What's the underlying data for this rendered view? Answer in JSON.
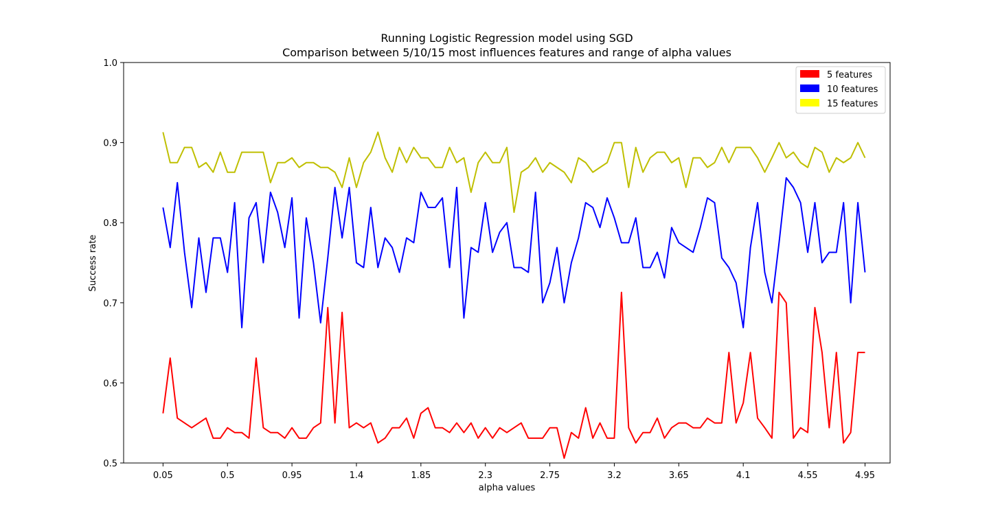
{
  "chart_data": {
    "type": "line",
    "title": "Running Logistic Regression model using SGD",
    "subtitle": "Comparison between 5/10/15 most influences features and range of alpha values",
    "xlabel": "alpha values",
    "ylabel": "Success rate",
    "xlim": [
      -0.225,
      5.125
    ],
    "ylim": [
      0.5,
      1.0
    ],
    "xticks": [
      "0.05",
      "0.5",
      "0.95",
      "1.4",
      "1.85",
      "2.3",
      "2.75",
      "3.2",
      "3.65",
      "4.1",
      "4.55",
      "4.95"
    ],
    "xtick_values": [
      0.05,
      0.5,
      0.95,
      1.4,
      1.85,
      2.3,
      2.75,
      3.2,
      3.65,
      4.1,
      4.55,
      4.95
    ],
    "yticks": [
      "0.5",
      "0.6",
      "0.7",
      "0.8",
      "0.9",
      "1.0"
    ],
    "ytick_values": [
      0.5,
      0.6,
      0.7,
      0.8,
      0.9,
      1.0
    ],
    "grid": false,
    "legend_position": "top-right",
    "x_start": 0.05,
    "x_step": 0.05,
    "series": [
      {
        "name": "5 features",
        "color": "#ff0000",
        "values": [
          0.562,
          0.631,
          0.556,
          0.55,
          0.544,
          0.55,
          0.556,
          0.531,
          0.531,
          0.544,
          0.538,
          0.538,
          0.531,
          0.631,
          0.544,
          0.538,
          0.538,
          0.531,
          0.544,
          0.531,
          0.531,
          0.544,
          0.55,
          0.694,
          0.55,
          0.688,
          0.544,
          0.55,
          0.544,
          0.55,
          0.525,
          0.531,
          0.544,
          0.544,
          0.556,
          0.531,
          0.562,
          0.569,
          0.544,
          0.544,
          0.538,
          0.55,
          0.538,
          0.55,
          0.531,
          0.544,
          0.531,
          0.544,
          0.538,
          0.544,
          0.55,
          0.531,
          0.531,
          0.531,
          0.544,
          0.544,
          0.506,
          0.538,
          0.531,
          0.569,
          0.531,
          0.55,
          0.531,
          0.531,
          0.713,
          0.544,
          0.525,
          0.538,
          0.538,
          0.556,
          0.531,
          0.544,
          0.55,
          0.55,
          0.544,
          0.544,
          0.556,
          0.55,
          0.55,
          0.638,
          0.55,
          0.575,
          0.638,
          0.556,
          0.544,
          0.531,
          0.713,
          0.7,
          0.531,
          0.544,
          0.538,
          0.694,
          0.638,
          0.544,
          0.638,
          0.525,
          0.538,
          0.638,
          0.638
        ]
      },
      {
        "name": "10 features",
        "color": "#0000ff",
        "values": [
          0.819,
          0.769,
          0.85,
          0.763,
          0.694,
          0.781,
          0.713,
          0.781,
          0.781,
          0.738,
          0.825,
          0.669,
          0.806,
          0.825,
          0.75,
          0.838,
          0.813,
          0.769,
          0.831,
          0.681,
          0.806,
          0.75,
          0.675,
          0.756,
          0.844,
          0.781,
          0.844,
          0.75,
          0.744,
          0.819,
          0.744,
          0.781,
          0.769,
          0.738,
          0.781,
          0.775,
          0.838,
          0.819,
          0.819,
          0.831,
          0.744,
          0.844,
          0.681,
          0.769,
          0.763,
          0.825,
          0.763,
          0.788,
          0.8,
          0.744,
          0.744,
          0.738,
          0.838,
          0.7,
          0.725,
          0.769,
          0.7,
          0.75,
          0.781,
          0.825,
          0.819,
          0.794,
          0.831,
          0.806,
          0.775,
          0.775,
          0.806,
          0.744,
          0.744,
          0.763,
          0.731,
          0.794,
          0.775,
          0.769,
          0.763,
          0.794,
          0.831,
          0.825,
          0.756,
          0.744,
          0.725,
          0.669,
          0.769,
          0.825,
          0.738,
          0.7,
          0.775,
          0.856,
          0.844,
          0.825,
          0.763,
          0.825,
          0.75,
          0.763,
          0.763,
          0.825,
          0.7,
          0.825,
          0.738
        ]
      },
      {
        "name": "15 features",
        "color": "#bfbf00",
        "legend_color": "#ffff00",
        "values": [
          0.913,
          0.875,
          0.875,
          0.894,
          0.894,
          0.869,
          0.875,
          0.863,
          0.888,
          0.863,
          0.863,
          0.888,
          0.888,
          0.888,
          0.888,
          0.85,
          0.875,
          0.875,
          0.881,
          0.869,
          0.875,
          0.875,
          0.869,
          0.869,
          0.863,
          0.844,
          0.881,
          0.844,
          0.875,
          0.888,
          0.913,
          0.881,
          0.863,
          0.894,
          0.875,
          0.894,
          0.881,
          0.881,
          0.869,
          0.869,
          0.894,
          0.875,
          0.881,
          0.838,
          0.875,
          0.888,
          0.875,
          0.875,
          0.894,
          0.813,
          0.863,
          0.869,
          0.881,
          0.863,
          0.875,
          0.869,
          0.863,
          0.85,
          0.881,
          0.875,
          0.863,
          0.869,
          0.875,
          0.9,
          0.9,
          0.844,
          0.894,
          0.863,
          0.881,
          0.888,
          0.888,
          0.875,
          0.881,
          0.844,
          0.881,
          0.881,
          0.869,
          0.875,
          0.894,
          0.875,
          0.894,
          0.894,
          0.894,
          0.881,
          0.863,
          0.881,
          0.9,
          0.881,
          0.888,
          0.875,
          0.869,
          0.894,
          0.888,
          0.863,
          0.881,
          0.875,
          0.881,
          0.9,
          0.881
        ]
      }
    ]
  }
}
